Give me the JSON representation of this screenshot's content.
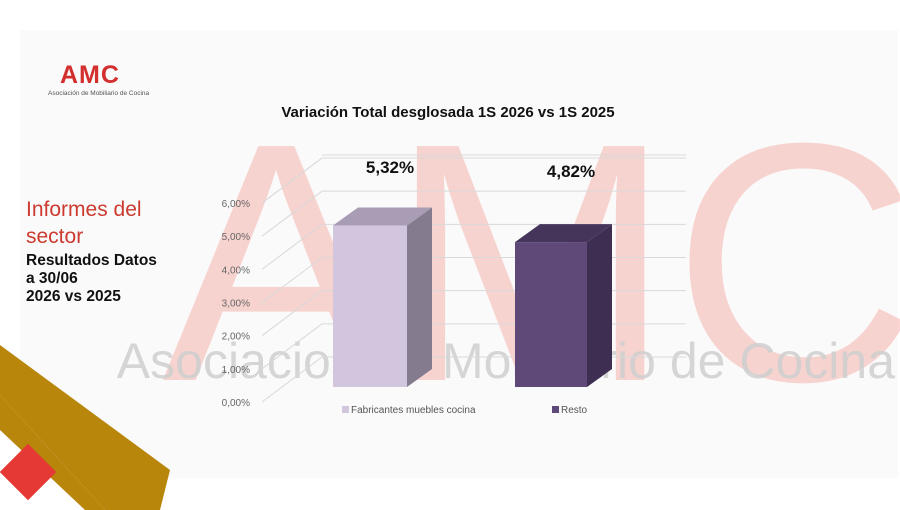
{
  "brand": {
    "logo_text": "AMC",
    "logo_subtitle": "Asociación de Mobiliario de Cocina",
    "watermark_big": "AMC",
    "watermark_text": "Asociacion de Mobiliario de Cocina"
  },
  "sidebar": {
    "title": "Informes del sector",
    "subtitle_lines": [
      "Resultados Datos",
      "a 30/06",
      "2026 vs 2025"
    ]
  },
  "colors": {
    "accent_red": "#cc3a30",
    "gold": "#b8860b",
    "square_red": "#e53935"
  },
  "chart_data": {
    "type": "bar",
    "title": "Variación Total desglosada 1S 2026 vs 1S 2025",
    "categories": [
      "Fabricantes muebles cocina",
      "Resto"
    ],
    "values": [
      5.32,
      4.82
    ],
    "value_labels": [
      "5,32%",
      "4,82%"
    ],
    "colors": [
      "#d2c6de",
      "#5e4978"
    ],
    "y_ticks": [
      "0,00%",
      "1,00%",
      "2,00%",
      "3,00%",
      "4,00%",
      "5,00%",
      "6,00%"
    ],
    "ylim": [
      0,
      6
    ],
    "grid": true,
    "three_d": true,
    "legend": "bottom"
  }
}
